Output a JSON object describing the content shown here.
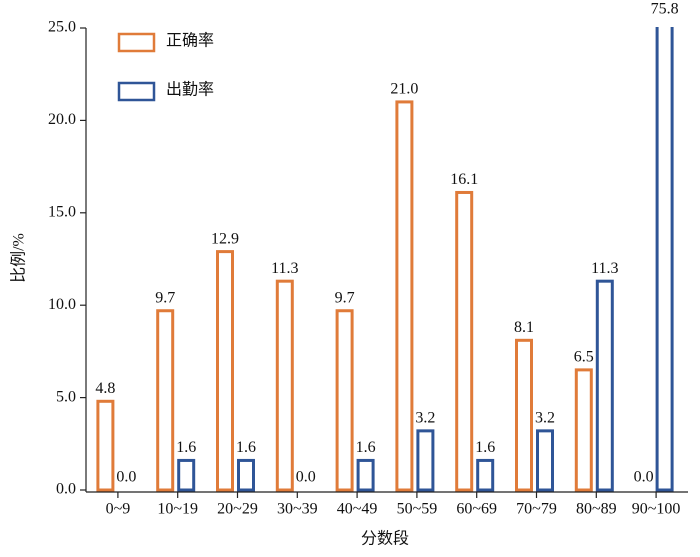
{
  "chart_data": {
    "type": "bar",
    "xlabel": "分数段",
    "ylabel": "比例/%",
    "categories": [
      "0~9",
      "10~19",
      "20~29",
      "30~39",
      "40~49",
      "50~59",
      "60~69",
      "70~79",
      "80~89",
      "90~100"
    ],
    "series": [
      {
        "name": "正确率",
        "color": "#e07b39",
        "values": [
          4.8,
          9.7,
          12.9,
          11.3,
          9.7,
          21.0,
          16.1,
          8.1,
          6.5,
          0.0
        ],
        "value_labels": [
          "4.8",
          "9.7",
          "12.9",
          "11.3",
          "9.7",
          "21.0",
          "16.1",
          "8.1",
          "6.5",
          "0.0"
        ]
      },
      {
        "name": "出勤率",
        "color": "#2f5597",
        "values": [
          0.0,
          1.6,
          1.6,
          0.0,
          1.6,
          3.2,
          1.6,
          3.2,
          11.3,
          75.8
        ],
        "value_labels": [
          "0.0",
          "1.6",
          "1.6",
          "0.0",
          "1.6",
          "3.2",
          "1.6",
          "3.2",
          "11.3",
          "75.8"
        ]
      }
    ],
    "ylim": [
      0,
      25
    ],
    "yticks": [
      {
        "value": 0,
        "label": "0.0"
      },
      {
        "value": 5,
        "label": "5.0"
      },
      {
        "value": 10,
        "label": "10.0"
      },
      {
        "value": 15,
        "label": "15.0"
      },
      {
        "value": 20,
        "label": "20.0"
      },
      {
        "value": 25,
        "label": "25.0"
      }
    ],
    "legend": "upper left",
    "grid": false
  }
}
